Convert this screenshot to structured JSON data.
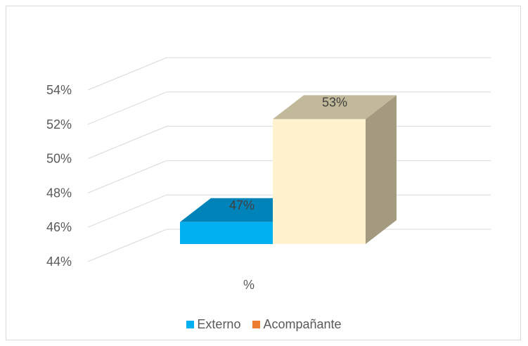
{
  "chart_data": {
    "type": "bar",
    "categories": [
      "%"
    ],
    "series": [
      {
        "name": "Externo",
        "values": [
          0.47
        ],
        "label": "47%",
        "color": "#00b0f0"
      },
      {
        "name": "Acompañante",
        "values": [
          0.53
        ],
        "label": "53%",
        "color": "#fff2cc",
        "legend_color": "#ed7d31"
      }
    ],
    "ylim": [
      0.44,
      0.54
    ],
    "yticks": [
      "44%",
      "46%",
      "48%",
      "50%",
      "52%",
      "54%"
    ],
    "grid": true,
    "legend": "bottom",
    "3d": true
  }
}
